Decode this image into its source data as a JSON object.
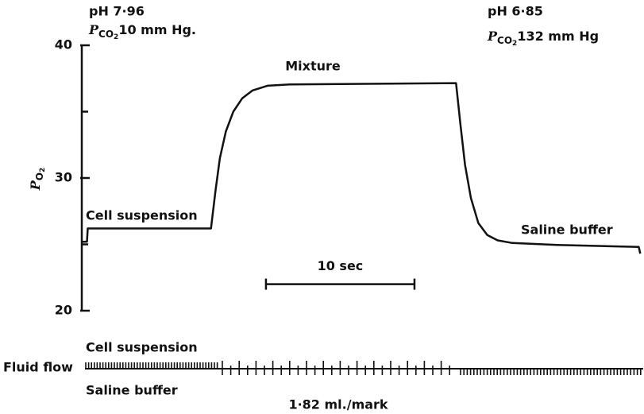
{
  "chart_data": {
    "type": "line",
    "y_label": {
      "symbol": "P",
      "subscript": "O",
      "subsubscript": "2"
    },
    "annotations": {
      "left_ph": "pH 7·96",
      "left_pco2": {
        "symbol": "P",
        "subscript": "CO",
        "subsubscript": "2",
        "text": "10 mm Hg."
      },
      "right_ph": "pH 6·85",
      "right_pco2": {
        "symbol": "P",
        "subscript": "CO",
        "subsubscript": "2",
        "text": "132 mm Hg"
      },
      "mixture": "Mixture",
      "cell_suspension": "Cell suspension",
      "saline_buffer": "Saline buffer"
    },
    "scale_bar": {
      "label": "10 sec",
      "x": [
        12.4,
        22.4
      ],
      "y": 22
    },
    "fluid_flow": {
      "label": "Fluid flow",
      "top": "Cell suspension",
      "bottom": "Saline buffer",
      "unit": "1·82 ml./mark"
    },
    "xlim": [
      0,
      37.8
    ],
    "ylim": [
      20,
      40
    ],
    "yticks": [
      20,
      30,
      40
    ],
    "minor_yticks": [
      25,
      35
    ],
    "color": "#111111",
    "x": [
      0,
      0.35,
      0.4,
      8.7,
      9.0,
      9.3,
      9.7,
      10.2,
      10.8,
      11.5,
      12.5,
      14,
      20,
      25.2,
      25.5,
      25.8,
      26.2,
      26.7,
      27.3,
      28,
      29,
      32,
      37.5,
      37.6
    ],
    "values": [
      25.2,
      25.2,
      26.2,
      26.2,
      29,
      31.5,
      33.5,
      35,
      36,
      36.6,
      36.95,
      37.05,
      37.1,
      37.15,
      34,
      31,
      28.5,
      26.6,
      25.7,
      25.3,
      25.1,
      24.95,
      24.8,
      24.3
    ]
  }
}
